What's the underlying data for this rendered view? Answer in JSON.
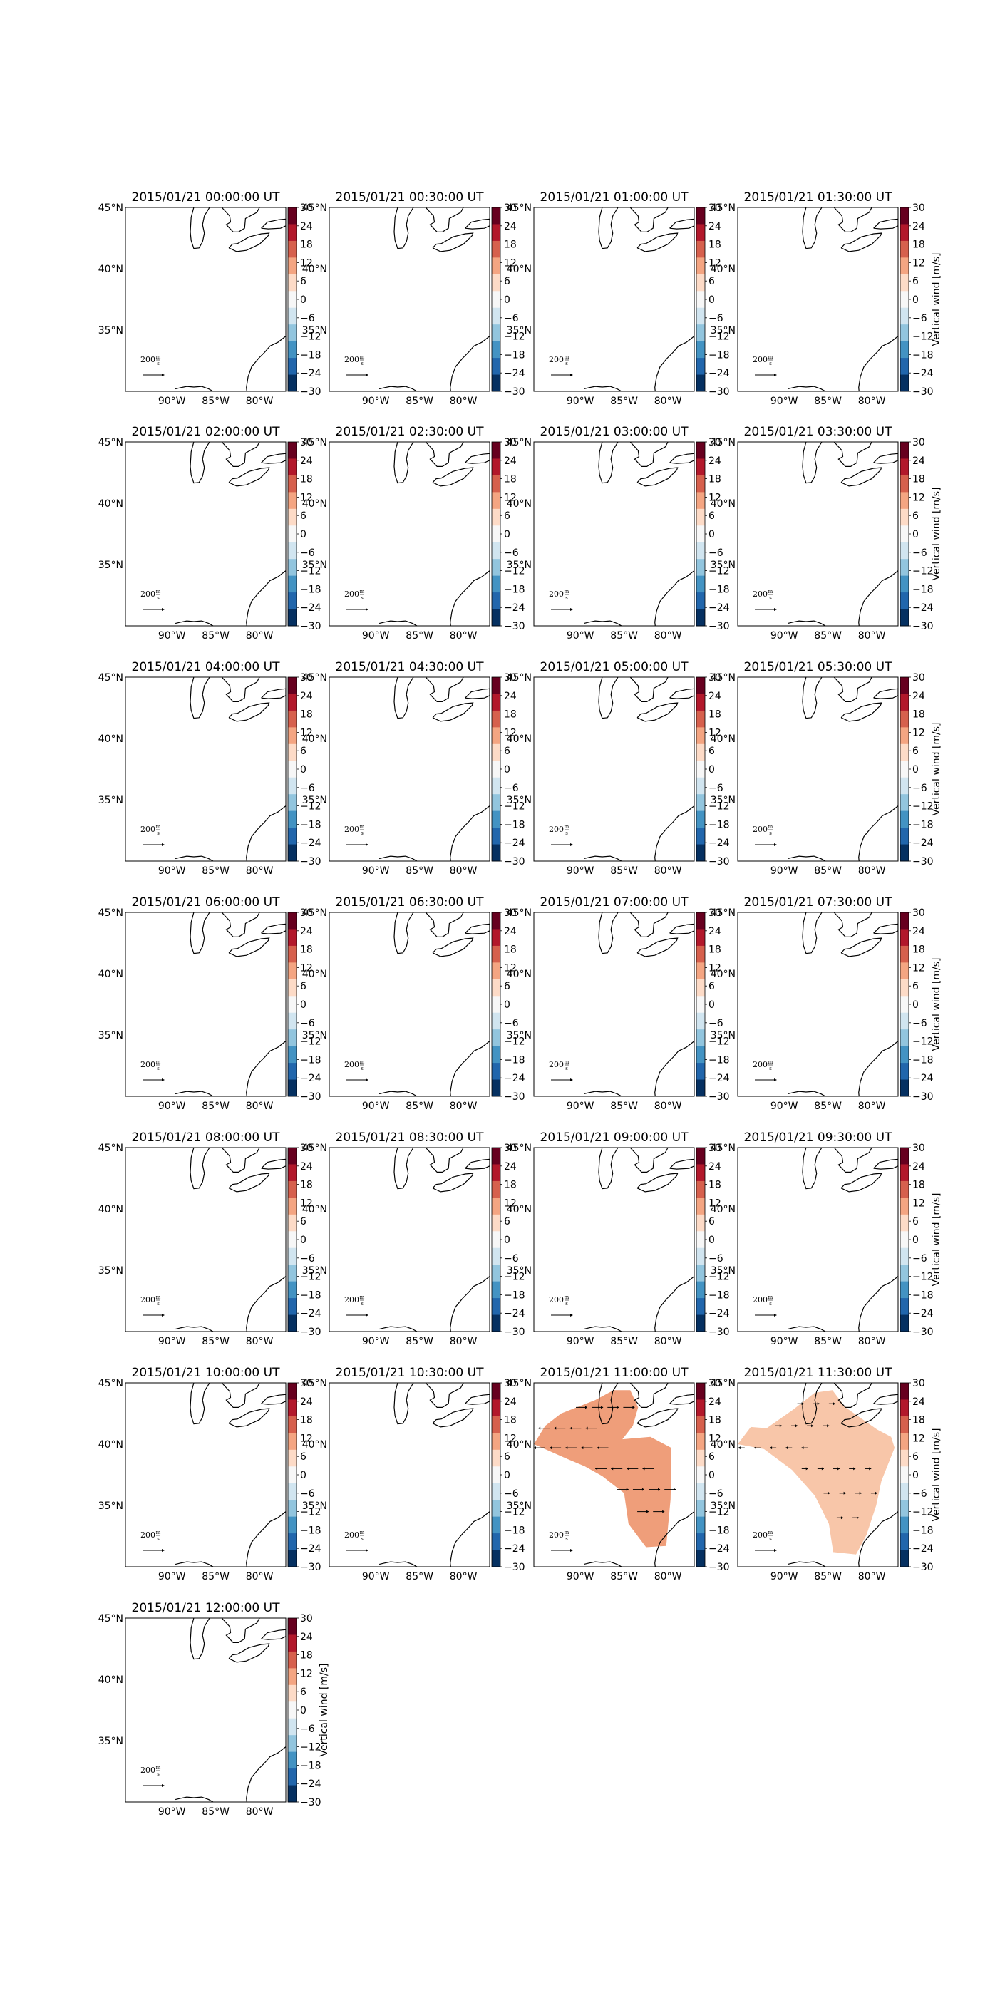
{
  "figure": {
    "colorbar_label": "Vertical wind [m/s]",
    "colorbar_ticks": [
      "30",
      "24",
      "18",
      "12",
      "6",
      "0",
      "−6",
      "−12",
      "−18",
      "−24",
      "−30"
    ],
    "lon_ticks": [
      "90°W",
      "85°W",
      "80°W"
    ],
    "lat_ticks": [
      "45°N",
      "40°N",
      "35°N"
    ],
    "vector_key": {
      "value": "200",
      "unit_num": "m",
      "unit_den": "s"
    }
  },
  "colors": {
    "colormap": [
      "#67001f",
      "#b2182b",
      "#d6604d",
      "#f4a582",
      "#fddbc7",
      "#f7f7f7",
      "#d1e5f0",
      "#92c5de",
      "#4393c3",
      "#2166ac",
      "#053061"
    ],
    "positive_fill_11_00": "#ef9e7a",
    "positive_fill_11_30": "#f8c6a9"
  },
  "chart_data": [
    {
      "type": "heatmap",
      "title": "2015/01/21 00:00:00 UT",
      "clim": [
        -30,
        30
      ],
      "lon_range": [
        "95°W",
        "77°W"
      ],
      "lat_range": [
        "30°N",
        "45°N"
      ],
      "vertical_wind": "none"
    },
    {
      "type": "heatmap",
      "title": "2015/01/21 00:30:00 UT",
      "clim": [
        -30,
        30
      ],
      "vertical_wind": "none"
    },
    {
      "type": "heatmap",
      "title": "2015/01/21 01:00:00 UT",
      "clim": [
        -30,
        30
      ],
      "vertical_wind": "none"
    },
    {
      "type": "heatmap",
      "title": "2015/01/21 01:30:00 UT",
      "clim": [
        -30,
        30
      ],
      "vertical_wind": "none"
    },
    {
      "type": "heatmap",
      "title": "2015/01/21 02:00:00 UT",
      "clim": [
        -30,
        30
      ],
      "vertical_wind": "none"
    },
    {
      "type": "heatmap",
      "title": "2015/01/21 02:30:00 UT",
      "clim": [
        -30,
        30
      ],
      "vertical_wind": "none"
    },
    {
      "type": "heatmap",
      "title": "2015/01/21 03:00:00 UT",
      "clim": [
        -30,
        30
      ],
      "vertical_wind": "none"
    },
    {
      "type": "heatmap",
      "title": "2015/01/21 03:30:00 UT",
      "clim": [
        -30,
        30
      ],
      "vertical_wind": "none"
    },
    {
      "type": "heatmap",
      "title": "2015/01/21 04:00:00 UT",
      "clim": [
        -30,
        30
      ],
      "vertical_wind": "none"
    },
    {
      "type": "heatmap",
      "title": "2015/01/21 04:30:00 UT",
      "clim": [
        -30,
        30
      ],
      "vertical_wind": "none"
    },
    {
      "type": "heatmap",
      "title": "2015/01/21 05:00:00 UT",
      "clim": [
        -30,
        30
      ],
      "vertical_wind": "none"
    },
    {
      "type": "heatmap",
      "title": "2015/01/21 05:30:00 UT",
      "clim": [
        -30,
        30
      ],
      "vertical_wind": "none"
    },
    {
      "type": "heatmap",
      "title": "2015/01/21 06:00:00 UT",
      "clim": [
        -30,
        30
      ],
      "vertical_wind": "none"
    },
    {
      "type": "heatmap",
      "title": "2015/01/21 06:30:00 UT",
      "clim": [
        -30,
        30
      ],
      "vertical_wind": "none"
    },
    {
      "type": "heatmap",
      "title": "2015/01/21 07:00:00 UT",
      "clim": [
        -30,
        30
      ],
      "vertical_wind": "none"
    },
    {
      "type": "heatmap",
      "title": "2015/01/21 07:30:00 UT",
      "clim": [
        -30,
        30
      ],
      "vertical_wind": "none"
    },
    {
      "type": "heatmap",
      "title": "2015/01/21 08:00:00 UT",
      "clim": [
        -30,
        30
      ],
      "vertical_wind": "none"
    },
    {
      "type": "heatmap",
      "title": "2015/01/21 08:30:00 UT",
      "clim": [
        -30,
        30
      ],
      "vertical_wind": "none"
    },
    {
      "type": "heatmap",
      "title": "2015/01/21 09:00:00 UT",
      "clim": [
        -30,
        30
      ],
      "vertical_wind": "none"
    },
    {
      "type": "heatmap",
      "title": "2015/01/21 09:30:00 UT",
      "clim": [
        -30,
        30
      ],
      "vertical_wind": "none"
    },
    {
      "type": "heatmap",
      "title": "2015/01/21 10:00:00 UT",
      "clim": [
        -30,
        30
      ],
      "vertical_wind": "none"
    },
    {
      "type": "heatmap",
      "title": "2015/01/21 10:30:00 UT",
      "clim": [
        -30,
        30
      ],
      "vertical_wind": "none"
    },
    {
      "type": "heatmap",
      "title": "2015/01/21 11:00:00 UT",
      "clim": [
        -30,
        30
      ],
      "vertical_wind": "approx +9 m/s over Great Lakes and Ohio Valley region",
      "approx_value": 9,
      "wind_vectors": "westward and eastward horizontal arrows"
    },
    {
      "type": "heatmap",
      "title": "2015/01/21 11:30:00 UT",
      "clim": [
        -30,
        30
      ],
      "vertical_wind": "approx +4 m/s over Great Lakes to Southeast region",
      "approx_value": 4,
      "wind_vectors": "short horizontal arrows"
    },
    {
      "type": "heatmap",
      "title": "2015/01/21 12:00:00 UT",
      "clim": [
        -30,
        30
      ],
      "vertical_wind": "none"
    }
  ]
}
